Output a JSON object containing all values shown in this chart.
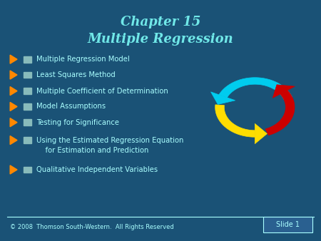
{
  "title_line1": "Chapter 15",
  "title_line2": "Multiple Regression",
  "title_color": "#70e8e8",
  "bg_color": "#1a5276",
  "bullet_items": [
    "Multiple Regression Model",
    "Least Squares Method",
    "Multiple Coefficient of Determination",
    "Model Assumptions",
    "Testing for Significance",
    "Using the Estimated Regression Equation",
    "    for Estimation and Prediction",
    "Qualitative Independent Variables"
  ],
  "bullet_color": "#aaffff",
  "footer_text": "© 2008  Thomson South-Western.  All Rights Reserved",
  "slide_text": "Slide 1",
  "footer_color": "#aaffff",
  "tri_color": "#ff8800",
  "sq_color": "#88bbbb",
  "cyan_arrow": "#00ccee",
  "yellow_arrow": "#ffdd00",
  "red_arrow": "#cc0000"
}
